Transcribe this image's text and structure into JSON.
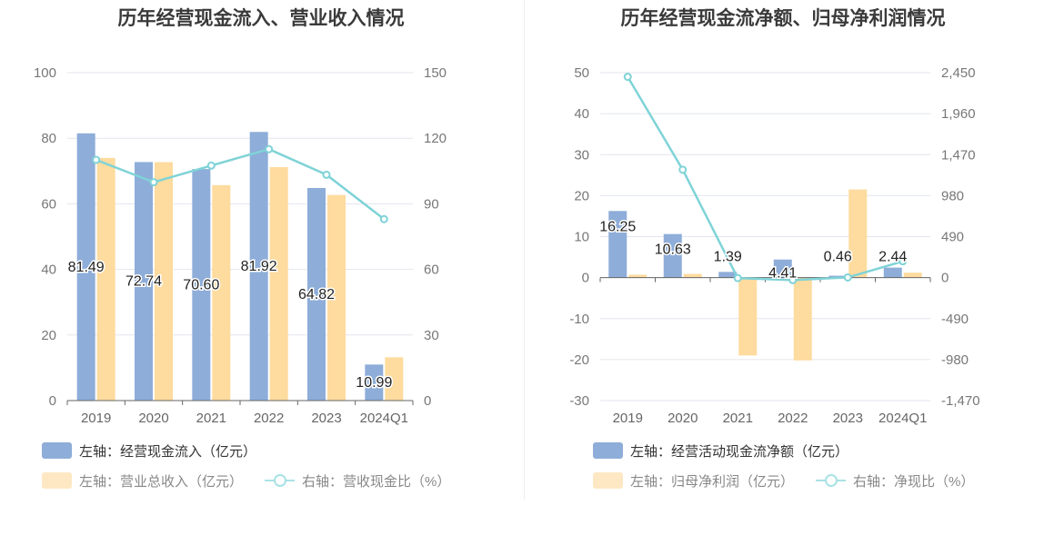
{
  "colors": {
    "bar_primary": "#8eadd9",
    "bar_secondary": "#fedb9e",
    "line": "#7fd3d7",
    "grid": "#e3e6ee",
    "axis_text": "#666666"
  },
  "chart_data": [
    {
      "type": "bar",
      "title": "历年经营现金流入、营业收入情况",
      "categories": [
        "2019",
        "2020",
        "2021",
        "2022",
        "2023",
        "2024Q1"
      ],
      "left_axis": {
        "ylim": [
          0,
          100
        ],
        "ticks": [
          "0",
          "20",
          "40",
          "60",
          "80",
          "100"
        ]
      },
      "right_axis": {
        "ylim": [
          0,
          150
        ],
        "ticks": [
          "0",
          "30",
          "60",
          "90",
          "120",
          "150"
        ]
      },
      "series": [
        {
          "name": "左轴：经营现金流入（亿元）",
          "kind": "bar",
          "axis": "left",
          "values": [
            81.49,
            72.74,
            70.6,
            81.92,
            64.82,
            10.99
          ],
          "labels": [
            "81.49",
            "72.74",
            "70.60",
            "81.92",
            "64.82",
            "10.99"
          ]
        },
        {
          "name": "左轴：营业总收入（亿元）",
          "kind": "bar",
          "axis": "left",
          "values": [
            74.0,
            72.7,
            65.7,
            71.2,
            62.7,
            13.2
          ]
        },
        {
          "name": "右轴：营收现金比（%）",
          "kind": "line",
          "axis": "right",
          "values": [
            110.1,
            99.9,
            107.5,
            115.0,
            103.3,
            83.0
          ]
        }
      ],
      "legend_placement": "bottom",
      "grid": true
    },
    {
      "type": "bar",
      "title": "历年经营现金流净额、归母净利润情况",
      "categories": [
        "2019",
        "2020",
        "2021",
        "2022",
        "2023",
        "2024Q1"
      ],
      "left_axis": {
        "ylim": [
          -30,
          50
        ],
        "ticks": [
          "-30",
          "-20",
          "-10",
          "0",
          "10",
          "20",
          "30",
          "40",
          "50"
        ]
      },
      "right_axis": {
        "ylim": [
          -1470,
          2450
        ],
        "ticks": [
          "-1,470",
          "-980",
          "-490",
          "0",
          "490",
          "980",
          "1,470",
          "1,960",
          "2,450"
        ]
      },
      "series": [
        {
          "name": "左轴：经营活动现金流净额（亿元）",
          "kind": "bar",
          "axis": "left",
          "values": [
            16.25,
            10.63,
            1.39,
            4.41,
            0.46,
            2.44
          ],
          "labels": [
            "16.25",
            "10.63",
            "1.39",
            "4.41",
            "0.46",
            "2.44"
          ]
        },
        {
          "name": "左轴：归母净利润（亿元）",
          "kind": "bar",
          "axis": "left",
          "values": [
            0.7,
            0.9,
            -19.0,
            -20.2,
            21.5,
            1.2
          ]
        },
        {
          "name": "右轴：净现比（%）",
          "kind": "line",
          "axis": "right",
          "values": [
            2400,
            1290,
            -6,
            -30,
            2,
            195
          ]
        }
      ],
      "legend_placement": "bottom",
      "grid": true
    }
  ]
}
